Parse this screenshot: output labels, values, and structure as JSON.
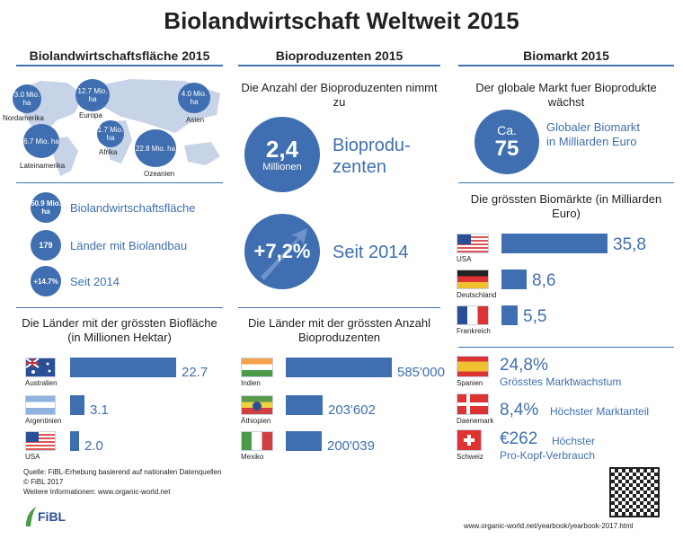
{
  "title": "Biolandwirtschaft Weltweit 2015",
  "col1": {
    "head": "Biolandwirtschaftsfläche 2015",
    "map": [
      {
        "value": "3.0 Mio. ha",
        "region": "Nordamerika"
      },
      {
        "value": "12.7 Mio. ha",
        "region": "Europa"
      },
      {
        "value": "4.0 Mio. ha",
        "region": "Asien"
      },
      {
        "value": "6.7 Mio. ha",
        "region": "Lateinamerika"
      },
      {
        "value": "1.7 Mio. ha",
        "region": "Afrika"
      },
      {
        "value": "22.8 Mio. ha",
        "region": "Ozeanien"
      }
    ],
    "stats": [
      {
        "badge": "50.9 Mio. ha",
        "text": "Biolandwirtschaftsfläche"
      },
      {
        "badge": "179",
        "text": "Länder mit Biolandbau"
      },
      {
        "badge": "+14.7%",
        "text": "Seit 2014"
      }
    ],
    "subtitle": "Die Länder mit der grössten Biofläche (in Millionen Hektar)"
  },
  "col2": {
    "head": "Bioproduzenten 2015",
    "intro": "Die Anzahl der Bioproduzenten nimmt zu",
    "big_value": "2,4",
    "big_unit": "Millionen",
    "big_text": "Bioprodu- zenten",
    "growth_value": "+7,2%",
    "growth_text": "Seit 2014",
    "subtitle": "Die Länder mit der grössten Anzahl Bioproduzenten"
  },
  "col3": {
    "head": "Biomarkt 2015",
    "intro": "Der globale Markt fuer Bioprodukte wächst",
    "ca": "Ca.",
    "market_value": "75",
    "market_text": "Globaler Biomarkt in Milliarden Euro",
    "subtitle": "Die grössten Biomärkte (in Milliarden Euro)",
    "facts": [
      {
        "country": "Spanien",
        "value": "24,8%",
        "text": "Grösstes Marktwachstum"
      },
      {
        "country": "Daenemark",
        "value": "8,4%",
        "text": "Höchster Marktanteil"
      },
      {
        "country": "Schweiz",
        "value": "€262",
        "text": "Höchster Pro-Kopf-Verbrauch"
      }
    ]
  },
  "footer": {
    "source": "Quelle: FiBL-Erhebung basierend auf nationalen Datenquellen",
    "copyright": "© FiBL 2017",
    "more": "Weitere Informationen: www.organic-world.net",
    "logo": "FiBL",
    "url": "www.organic-world.net/yearbook/yearbook-2017.html"
  },
  "colors": {
    "accent": "#3f6fb0",
    "map": "#c7d3e6"
  },
  "chart_data": [
    {
      "type": "bar",
      "orientation": "horizontal",
      "title": "Die Länder mit der grössten Biofläche (in Millionen Hektar)",
      "categories": [
        "Australien",
        "Argentinien",
        "USA"
      ],
      "values": [
        22.7,
        3.1,
        2.0
      ],
      "labels": [
        "22.7",
        "3.1",
        "2.0"
      ]
    },
    {
      "type": "bar",
      "orientation": "horizontal",
      "title": "Die Länder mit der grössten Anzahl Bioproduzenten",
      "categories": [
        "Indien",
        "Äthiopien",
        "Mexiko"
      ],
      "values": [
        585000,
        203602,
        200039
      ],
      "labels": [
        "585'000",
        "203'602",
        "200'039"
      ]
    },
    {
      "type": "bar",
      "orientation": "horizontal",
      "title": "Die grössten Biomärkte (in Milliarden Euro)",
      "categories": [
        "USA",
        "Deutschland",
        "Frankreich"
      ],
      "values": [
        35.8,
        8.6,
        5.5
      ],
      "labels": [
        "35,8",
        "8,6",
        "5,5"
      ]
    }
  ]
}
